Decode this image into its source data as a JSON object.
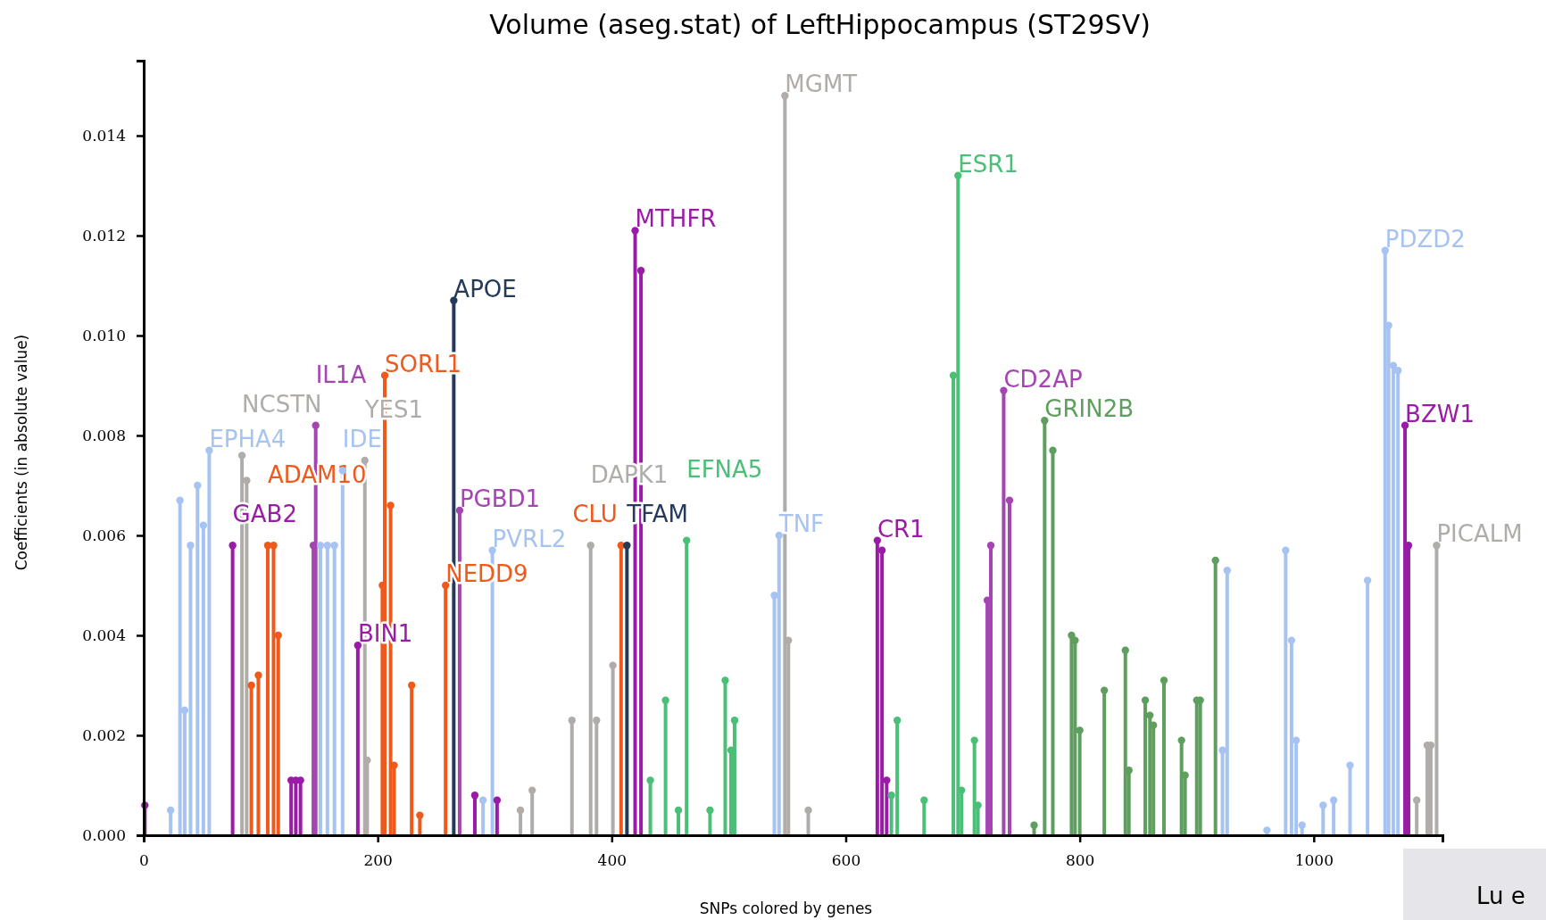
{
  "chart_data": {
    "type": "lollipop",
    "title": "Volume (aseg.stat) of LeftHippocampus (ST29SV)",
    "xlabel": "SNPs colored by genes",
    "ylabel": "Coefficients (in absolute value)",
    "xlim": [
      0,
      1110
    ],
    "xticks": [
      0,
      200,
      400,
      600,
      800,
      1000
    ],
    "ylim": [
      0,
      0.0155
    ],
    "yticks": [
      {
        "value": 0,
        "label": "0.000"
      },
      {
        "value": 0.002,
        "label": "0.002"
      },
      {
        "value": 0.004,
        "label": "0.004"
      },
      {
        "value": 0.006,
        "label": "0.006"
      },
      {
        "value": 0.008,
        "label": "0.008"
      },
      {
        "value": 0.01,
        "label": "0.010"
      },
      {
        "value": 0.012,
        "label": "0.012"
      },
      {
        "value": 0.014,
        "label": "0.014"
      }
    ],
    "grid": false,
    "marker": "circle",
    "line_style": "solid",
    "series": [
      {
        "color": "#a6c3f2",
        "x": [
          23,
          31,
          35,
          40,
          46,
          51,
          56,
          151,
          157,
          163,
          170,
          290,
          298,
          539,
          543,
          922,
          926,
          960,
          976,
          981,
          985,
          990,
          1008,
          1017,
          1031,
          1046,
          1061,
          1064,
          1068,
          1072
        ],
        "values": [
          0.0005,
          0.0067,
          0.0025,
          0.0058,
          0.007,
          0.0062,
          0.0077,
          0.0058,
          0.0058,
          0.0058,
          0.0073,
          0.0007,
          0.0057,
          0.0048,
          0.006,
          0.0017,
          0.0053,
          0.0001,
          0.0057,
          0.0039,
          0.0019,
          0.0002,
          0.0006,
          0.0007,
          0.0014,
          0.0051,
          0.0117,
          0.0102,
          0.0094,
          0.0093
        ]
      },
      {
        "color": "#b0aca9",
        "x": [
          84,
          88,
          189,
          191,
          322,
          332,
          366,
          382,
          387,
          401,
          548,
          551,
          568,
          1088,
          1097,
          1100,
          1105
        ],
        "values": [
          0.0076,
          0.0071,
          0.0075,
          0.0015,
          0.0005,
          0.0009,
          0.0023,
          0.0058,
          0.0023,
          0.0034,
          0.0148,
          0.0039,
          0.0005,
          0.0007,
          0.0018,
          0.0018,
          0.0058
        ]
      },
      {
        "color": "#9a1ca6",
        "x": [
          1,
          76,
          126,
          130,
          134,
          183,
          283,
          302,
          420,
          425,
          627,
          631,
          635,
          1078,
          1081
        ],
        "values": [
          0.0006,
          0.0058,
          0.0011,
          0.0011,
          0.0011,
          0.0038,
          0.0008,
          0.0007,
          0.0121,
          0.0113,
          0.0059,
          0.0057,
          0.0011,
          0.0082,
          0.0058
        ]
      },
      {
        "color": "#a445b2",
        "x": [
          145,
          147,
          270,
          721,
          724,
          735,
          740
        ],
        "values": [
          0.0058,
          0.0082,
          0.0065,
          0.0047,
          0.0058,
          0.0089,
          0.0067
        ]
      },
      {
        "color": "#ef5a1c",
        "x": [
          92,
          98,
          106,
          111,
          115,
          204,
          206,
          211,
          214,
          229,
          236,
          258,
          408
        ],
        "values": [
          0.003,
          0.0032,
          0.0058,
          0.0058,
          0.004,
          0.005,
          0.0092,
          0.0066,
          0.0014,
          0.003,
          0.0004,
          0.005,
          0.0058
        ]
      },
      {
        "color": "#243a5c",
        "x": [
          265,
          413
        ],
        "values": [
          0.0107,
          0.0058
        ]
      },
      {
        "color": "#4bbf78",
        "x": [
          433,
          446,
          457,
          464,
          484,
          497,
          502,
          505,
          639,
          644,
          667,
          692,
          696,
          699,
          710,
          713
        ],
        "values": [
          0.0011,
          0.0027,
          0.0005,
          0.0059,
          0.0005,
          0.0031,
          0.0017,
          0.0023,
          0.0008,
          0.0023,
          0.0007,
          0.0092,
          0.0132,
          0.0009,
          0.0019,
          0.0006
        ]
      },
      {
        "color": "#5e9e5e",
        "x": [
          761,
          770,
          777,
          793,
          796,
          800,
          821,
          839,
          842,
          856,
          860,
          863,
          872,
          887,
          890,
          900,
          903,
          916
        ],
        "values": [
          0.0002,
          0.0083,
          0.0077,
          0.004,
          0.0039,
          0.0021,
          0.0029,
          0.0037,
          0.0013,
          0.0027,
          0.0024,
          0.0022,
          0.0031,
          0.0019,
          0.0012,
          0.0027,
          0.0027,
          0.0055
        ]
      }
    ],
    "annotations": [
      {
        "text": "EPHA4",
        "x": 56,
        "y": 0.0077
      },
      {
        "text": "NCSTN",
        "x": 84,
        "y": 0.0076
      },
      {
        "text": "GAB2",
        "x": 76,
        "y": 0.0058
      },
      {
        "text": "ADAM10",
        "x": 106,
        "y": 0.0058
      },
      {
        "text": "IL1A",
        "x": 147,
        "y": 0.0082
      },
      {
        "text": "IDE",
        "x": 170,
        "y": 0.0073
      },
      {
        "text": "YES1",
        "x": 189,
        "y": 0.0075
      },
      {
        "text": "BIN1",
        "x": 183,
        "y": 0.0038
      },
      {
        "text": "SORL1",
        "x": 206,
        "y": 0.0092
      },
      {
        "text": "APOE",
        "x": 265,
        "y": 0.0107
      },
      {
        "text": "PGBD1",
        "x": 270,
        "y": 0.0065
      },
      {
        "text": "NEDD9",
        "x": 258,
        "y": 0.005
      },
      {
        "text": "PVRL2",
        "x": 298,
        "y": 0.0057
      },
      {
        "text": "TFAM",
        "x": 413,
        "y": 0.0058
      },
      {
        "text": "DAPK1",
        "x": 382,
        "y": 0.0058
      },
      {
        "text": "CLU",
        "x": 408,
        "y": 0.0058
      },
      {
        "text": "MTHFR",
        "x": 420,
        "y": 0.0121
      },
      {
        "text": "EFNA5",
        "x": 464,
        "y": 0.0059
      },
      {
        "text": "MGMT",
        "x": 548,
        "y": 0.0148
      },
      {
        "text": "TNF",
        "x": 543,
        "y": 0.006
      },
      {
        "text": "CR1",
        "x": 627,
        "y": 0.0059
      },
      {
        "text": "ESR1",
        "x": 696,
        "y": 0.0132
      },
      {
        "text": "CD2AP",
        "x": 735,
        "y": 0.0089
      },
      {
        "text": "GRIN2B",
        "x": 770,
        "y": 0.0083
      },
      {
        "text": "PDZD2",
        "x": 1061,
        "y": 0.0117
      },
      {
        "text": "BZW1",
        "x": 1078,
        "y": 0.0082
      },
      {
        "text": "PICALM",
        "x": 1105,
        "y": 0.0058
      },
      "Lu e"
    ]
  }
}
